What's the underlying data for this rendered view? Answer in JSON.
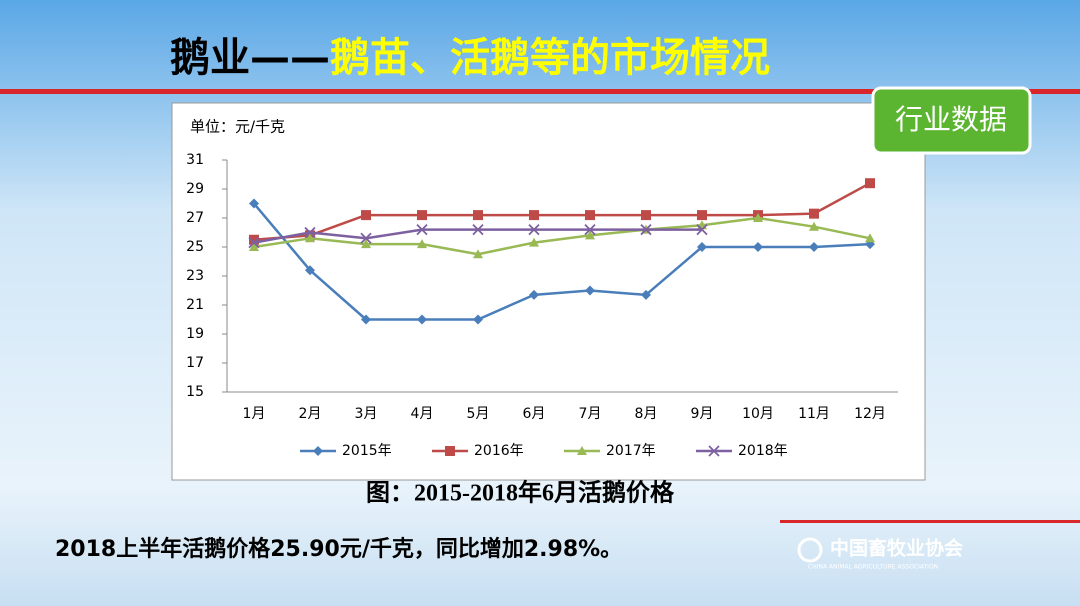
{
  "slide": {
    "title_black": "鹅业——",
    "title_yellow": "鹅苗、活鹅等的市场情况",
    "badge": "行业数据",
    "caption": "图：2015-2018年6月活鹅价格",
    "summary": "2018上半年活鹅价格25.90元/千克，同比增加2.98%。",
    "logo_name": "中国畜牧业协会",
    "logo_english": "CHINA ANIMAL AGRICULTURE ASSOCIATION"
  },
  "chart_data": {
    "type": "line",
    "unit_label": "单位：元/千克",
    "categories": [
      "1月",
      "2月",
      "3月",
      "4月",
      "5月",
      "6月",
      "7月",
      "8月",
      "9月",
      "10月",
      "11月",
      "12月"
    ],
    "series": [
      {
        "name": "2015年",
        "color": "#4a7ebb",
        "marker": "diamond",
        "values": [
          28,
          23.4,
          20,
          20,
          20,
          21.7,
          22,
          21.7,
          25,
          25,
          25,
          25.2
        ]
      },
      {
        "name": "2016年",
        "color": "#be4b48",
        "marker": "square",
        "values": [
          25.5,
          25.8,
          27.2,
          27.2,
          27.2,
          27.2,
          27.2,
          27.2,
          27.2,
          27.2,
          27.3,
          29.4
        ]
      },
      {
        "name": "2017年",
        "color": "#98b954",
        "marker": "triangle",
        "values": [
          25,
          25.6,
          25.2,
          25.2,
          24.5,
          25.3,
          25.8,
          26.2,
          26.5,
          27,
          26.4,
          25.6
        ]
      },
      {
        "name": "2018年",
        "color": "#7d60a0",
        "marker": "x",
        "values": [
          25.3,
          26,
          25.6,
          26.2,
          26.2,
          26.2,
          26.2,
          26.2,
          26.2,
          null,
          null,
          null
        ]
      }
    ],
    "ylim": [
      15,
      31
    ],
    "yticks": [
      15,
      17,
      19,
      21,
      23,
      25,
      27,
      29,
      31
    ],
    "grid": false,
    "legend": "bottom"
  }
}
